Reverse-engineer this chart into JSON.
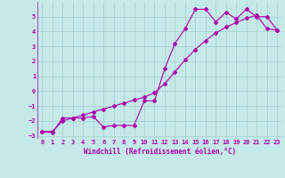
{
  "xlabel": "Windchill (Refroidissement éolien,°C)",
  "background_color": "#c5e8e8",
  "grid_color": "#aad4d4",
  "line_color": "#aa00aa",
  "xlim": [
    -0.5,
    23.5
  ],
  "ylim": [
    -3.2,
    6.0
  ],
  "xticks": [
    0,
    1,
    2,
    3,
    4,
    5,
    6,
    7,
    8,
    9,
    10,
    11,
    12,
    13,
    14,
    15,
    16,
    17,
    18,
    19,
    20,
    21,
    22,
    23
  ],
  "yticks": [
    -3,
    -2,
    -1,
    0,
    1,
    2,
    3,
    4,
    5
  ],
  "line1_x": [
    0,
    1,
    2,
    3,
    4,
    5,
    6,
    7,
    8,
    9,
    10,
    11,
    12,
    13,
    14,
    15,
    16,
    17,
    18,
    19,
    20,
    21,
    22,
    23
  ],
  "line1_y": [
    -2.7,
    -2.8,
    -1.8,
    -1.8,
    -1.8,
    -1.7,
    -2.4,
    -2.3,
    -2.3,
    -2.3,
    -0.65,
    -0.65,
    1.5,
    3.2,
    4.2,
    5.5,
    5.5,
    4.65,
    5.3,
    4.85,
    5.5,
    5.0,
    5.0,
    4.1
  ],
  "line2_x": [
    0,
    1,
    2,
    3,
    4,
    5,
    6,
    7,
    8,
    9,
    10,
    11,
    12,
    13,
    14,
    15,
    16,
    17,
    18,
    19,
    20,
    21,
    22,
    23
  ],
  "line2_y": [
    -2.7,
    -2.7,
    -2.0,
    -1.8,
    -1.6,
    -1.4,
    -1.2,
    -1.0,
    -0.8,
    -0.6,
    -0.4,
    -0.1,
    0.5,
    1.3,
    2.1,
    2.8,
    3.4,
    3.9,
    4.3,
    4.6,
    4.9,
    5.1,
    4.2,
    4.1
  ]
}
